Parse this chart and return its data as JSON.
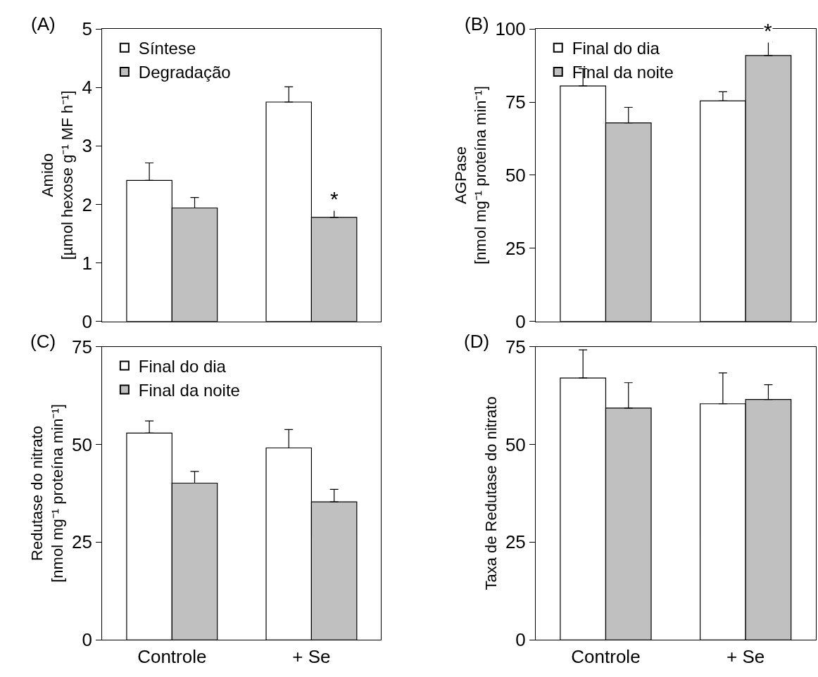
{
  "chart_data": [
    {
      "type": "bar",
      "categories": [
        "Controle",
        "+ Se"
      ],
      "ylabel": "Amido\n[µmol hexose g⁻¹ MF h⁻¹]",
      "ylim": [
        0,
        5
      ],
      "yticks": [
        0,
        1,
        2,
        3,
        4,
        5
      ],
      "tick_labels": "y",
      "legend": "top left",
      "series": [
        {
          "name": "Síntese",
          "color": "#ffffff",
          "values": [
            2.41,
            3.75
          ],
          "errors": [
            [
              2.41,
              2.71
            ],
            [
              3.75,
              4.01
            ]
          ]
        },
        {
          "name": "Degradação",
          "color": "#c0c0c0",
          "values": [
            1.94,
            1.78
          ],
          "errors": [
            [
              1.94,
              2.12
            ],
            [
              1.78,
              1.91
            ]
          ]
        }
      ],
      "annotations": [
        "(A)",
        {
          "text": "*",
          "x": "+ Se",
          "y": 1.78
        }
      ]
    },
    {
      "type": "bar",
      "categories": [
        "Controle",
        "+ Se"
      ],
      "ylabel": "AGPase\n[nmol mg⁻¹ proteína min⁻¹]",
      "ylim": [
        0,
        100
      ],
      "yticks": [
        0,
        25,
        50,
        75,
        100
      ],
      "tick_labels": "y",
      "legend": "top left",
      "series": [
        {
          "name": "Final do dia",
          "color": "#ffffff",
          "values": [
            80.5,
            75.4
          ],
          "errors": [
            [
              80.5,
              86.4
            ],
            [
              75.4,
              78.5
            ]
          ]
        },
        {
          "name": "Final da noite",
          "color": "#c0c0c0",
          "values": [
            67.9,
            90.9
          ],
          "errors": [
            [
              67.9,
              73.2
            ],
            [
              90.9,
              95.6
            ]
          ]
        }
      ],
      "annotations": [
        "(B)",
        {
          "text": "*",
          "x": "+ Se",
          "y": 90.9
        }
      ]
    },
    {
      "type": "bar",
      "categories": [
        "Controle",
        "+ Se"
      ],
      "ylabel": "Redutase do nitrato\n[nmol mg⁻¹ proteína min⁻¹]",
      "ylim": [
        0,
        75
      ],
      "yticks": [
        0,
        25,
        50,
        75
      ],
      "legend": "top left",
      "series": [
        {
          "name": "Final do dia",
          "color": "#ffffff",
          "values": [
            52.9,
            49.1
          ],
          "errors": [
            [
              52.9,
              56.0
            ],
            [
              49.1,
              53.8
            ]
          ]
        },
        {
          "name": "Final da noite",
          "color": "#c0c0c0",
          "values": [
            40.1,
            35.3
          ],
          "errors": [
            [
              40.1,
              43.1
            ],
            [
              35.3,
              38.5
            ]
          ]
        }
      ],
      "annotations": [
        "(C)"
      ]
    },
    {
      "type": "bar",
      "categories": [
        "Controle",
        "+ Se"
      ],
      "ylabel": "Taxa de Redutase do nitrato",
      "ylim": [
        0,
        75
      ],
      "yticks": [
        0,
        25,
        50,
        75
      ],
      "legend": false,
      "series": [
        {
          "color": "#ffffff",
          "values": [
            67.0,
            60.4
          ],
          "errors": [
            [
              67.0,
              74.2
            ],
            [
              60.4,
              68.3
            ]
          ]
        },
        {
          "color": "#c0c0c0",
          "values": [
            59.3,
            61.5
          ],
          "errors": [
            [
              59.3,
              65.8
            ],
            [
              61.5,
              65.3
            ]
          ]
        }
      ],
      "annotations": [
        "(D)"
      ]
    }
  ]
}
